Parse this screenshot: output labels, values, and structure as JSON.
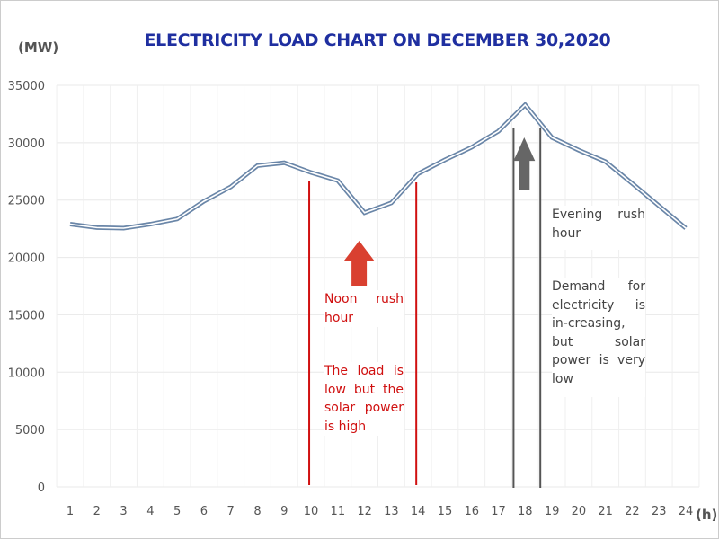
{
  "chart_data": {
    "type": "line",
    "title": "ELECTRICITY LOAD CHART ON DECEMBER 30,2020",
    "ylabel": "(MW)",
    "xlabel": "(h)",
    "ylim": [
      0,
      35000
    ],
    "yticks": [
      0,
      5000,
      10000,
      15000,
      20000,
      25000,
      30000,
      35000
    ],
    "x": [
      1,
      2,
      3,
      4,
      5,
      6,
      7,
      8,
      9,
      10,
      11,
      12,
      13,
      14,
      15,
      16,
      17,
      18,
      19,
      20,
      21,
      22,
      23,
      24
    ],
    "series": [
      {
        "values": [
          22900,
          22600,
          22550,
          22900,
          23350,
          24900,
          26150,
          28000,
          28250,
          27400,
          26700,
          23900,
          24750,
          27300,
          28500,
          29600,
          31000,
          33300,
          30450,
          29350,
          28350,
          26450,
          24500,
          22550
        ],
        "color": "#6a86a8"
      }
    ],
    "grid": true,
    "annotations": {
      "noon": {
        "color": "#d01010",
        "lines_at": [
          10,
          14
        ],
        "arrow_at": 12,
        "heading": "Noon rush hour",
        "text": "The load is low but the solar power is high"
      },
      "evening": {
        "color": "#555555",
        "lines_at": [
          17.5,
          18.5
        ],
        "arrow_at": 18,
        "heading": "Evening rush hour",
        "text": "Demand for electricity is in-creasing, but solar power is very low"
      }
    }
  }
}
